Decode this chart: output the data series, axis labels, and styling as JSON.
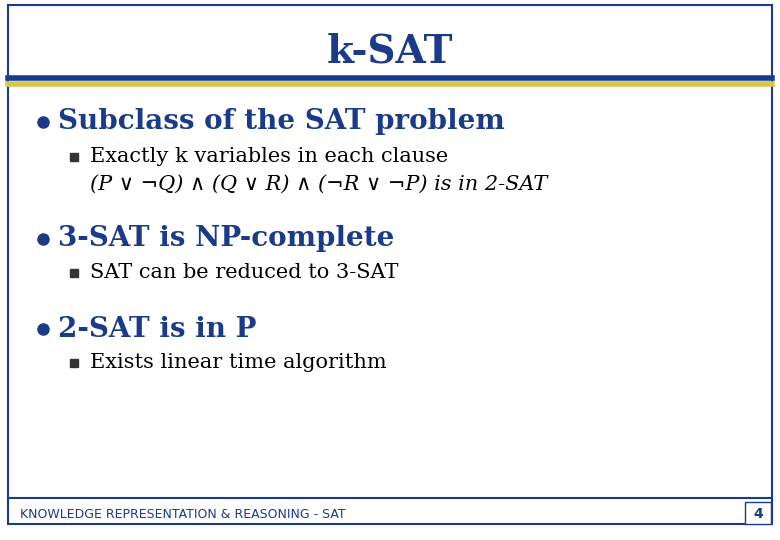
{
  "title": "k-SAT",
  "title_color": "#1a3a8a",
  "title_fontsize": 28,
  "bg_color": "#ffffff",
  "border_color": "#1a3a8a",
  "divider_blue": "#1a3a8a",
  "divider_yellow": "#d4c84a",
  "bullet_color": "#1a3a8a",
  "bullet1_text": "Subclass of the SAT problem",
  "bullet1_sub1": "Exactly k variables in each clause",
  "bullet1_sub2": "(P ∨ ¬Q) ∧ (Q ∨ R) ∧ (¬R ∨ ¬P) is in 2-SAT",
  "bullet2_text": "3-SAT is NP-complete",
  "bullet2_sub1": "SAT can be reduced to 3-SAT",
  "bullet3_text": "2-SAT is in P",
  "bullet3_sub1": "Exists linear time algorithm",
  "footer_text": "KNOWLEDGE REPRESENTATION & REASONING - SAT",
  "footer_color": "#1a3a8a",
  "footer_fontsize": 9,
  "page_number": "4",
  "bullet_fontsize": 20,
  "sub_fontsize": 15
}
